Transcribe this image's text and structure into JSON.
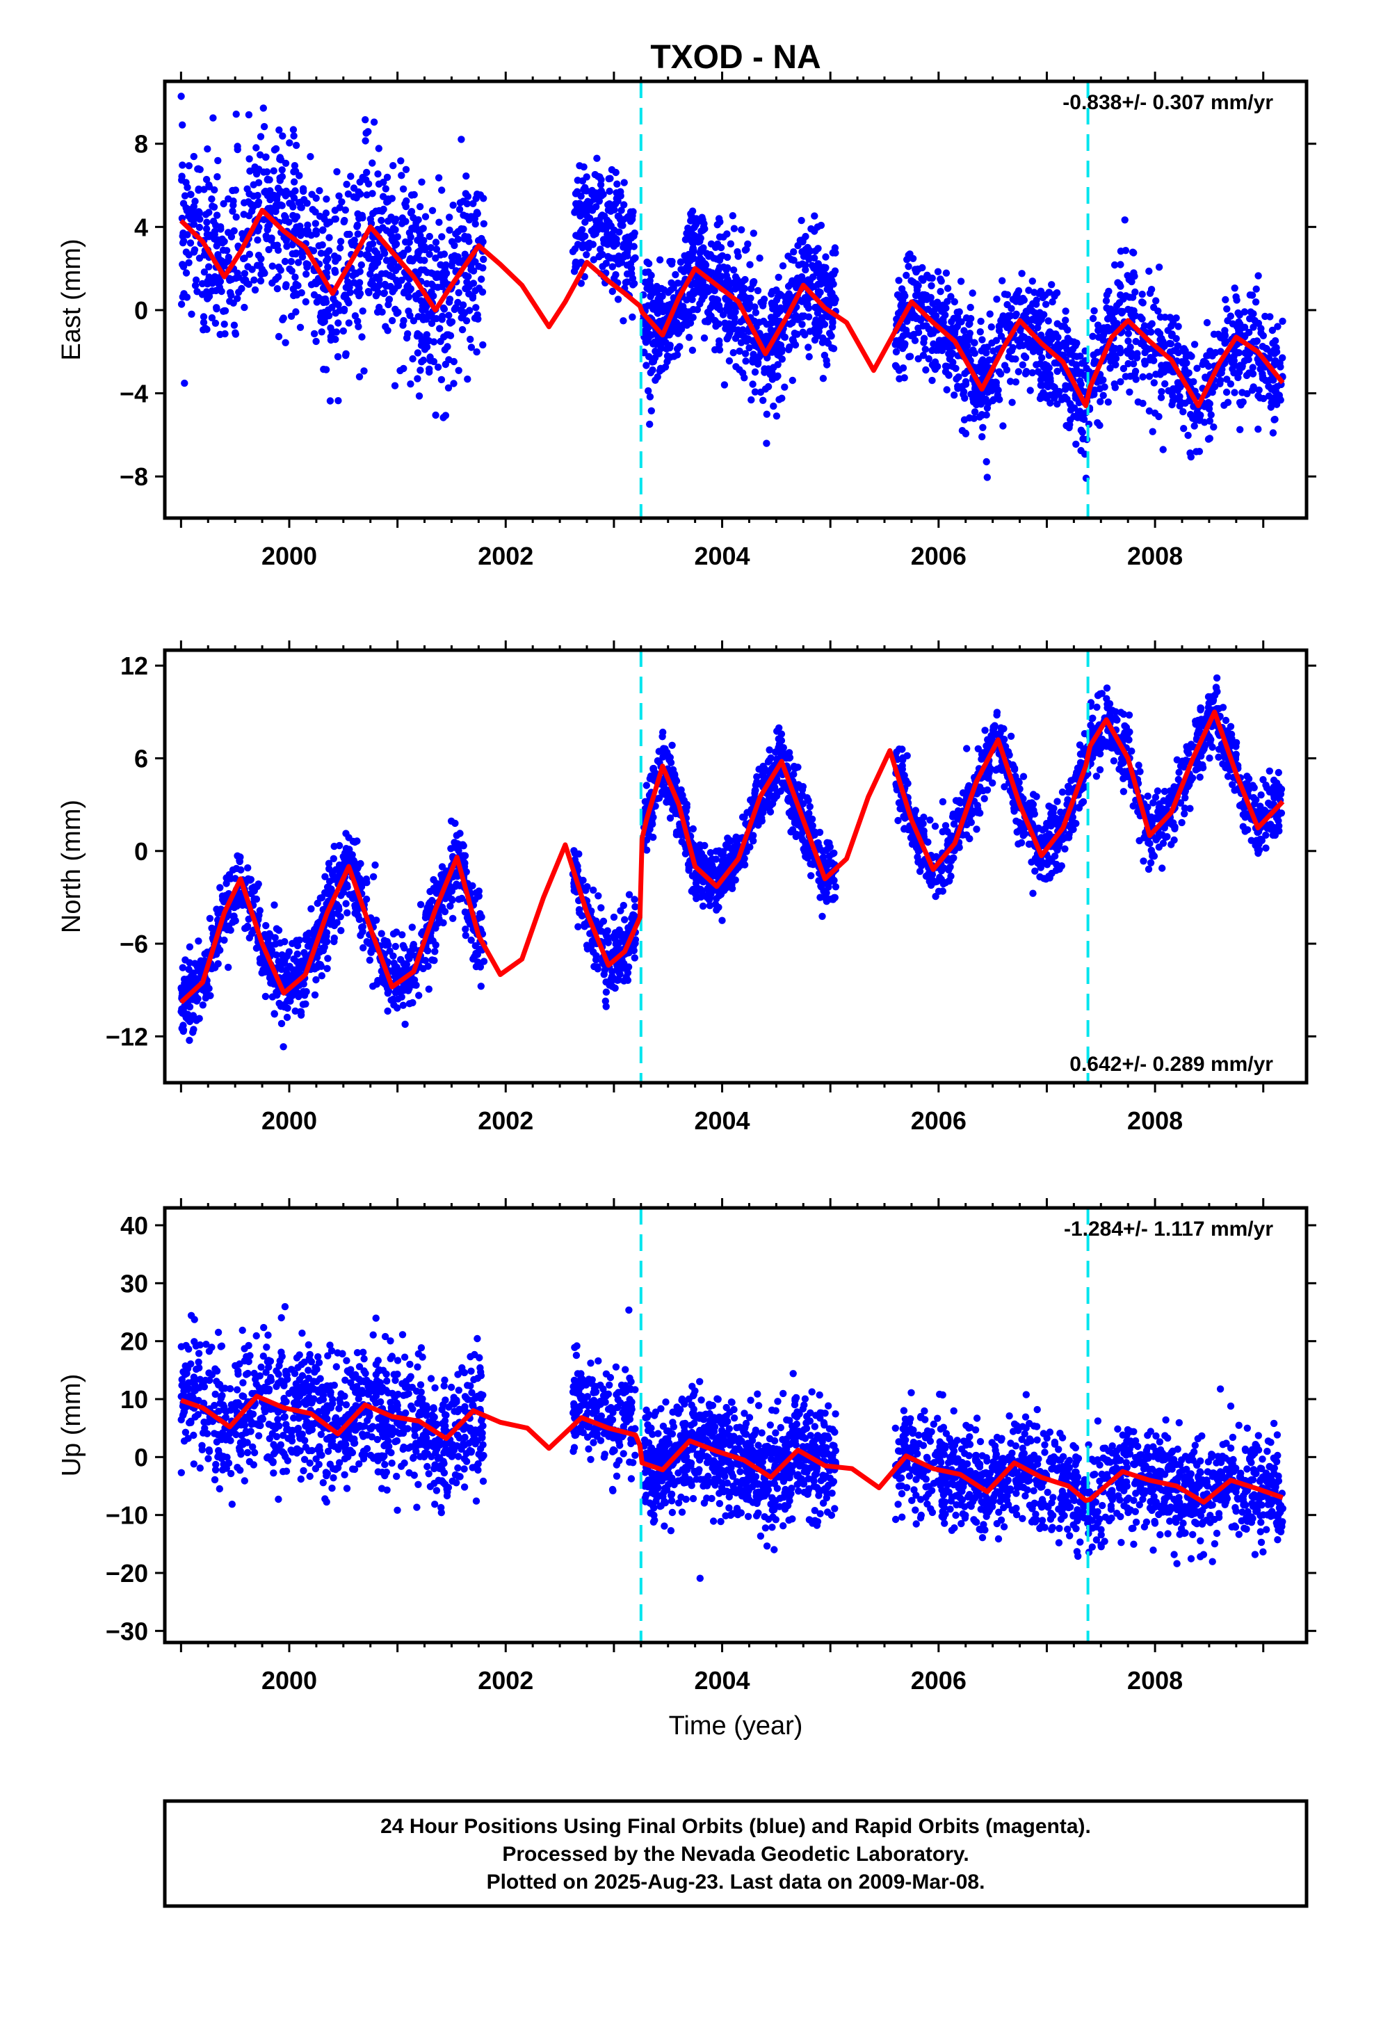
{
  "title": "TXOD - NA",
  "colors": {
    "points": "#0000ff",
    "fit": "#ff0000",
    "offset_lines": "#00e5ee",
    "frame": "#000000"
  },
  "xlabel": "Time (year)",
  "footer": {
    "line1": "24 Hour Positions Using Final Orbits (blue) and Rapid Orbits (magenta).",
    "line2": "Processed by the Nevada Geodetic Laboratory.",
    "line3": "Plotted on 2025-Aug-23. Last data on 2009-Mar-08."
  },
  "chart_data": [
    {
      "type": "scatter",
      "component": "east",
      "ylabel": "East (mm)",
      "rate": "-0.838+/- 0.307 mm/yr",
      "xlim": [
        1998.85,
        2009.4
      ],
      "ylim": [
        -10,
        11
      ],
      "xticks": [
        2000,
        2002,
        2004,
        2006,
        2008
      ],
      "yticks": [
        -8,
        -4,
        0,
        4,
        8
      ],
      "offset_epochs": [
        2003.25,
        2007.38
      ],
      "fit": {
        "name": "",
        "x": [
          1999.0,
          1999.2,
          1999.4,
          1999.55,
          1999.75,
          1999.95,
          2000.15,
          2000.4,
          2000.6,
          2000.75,
          2000.95,
          2001.15,
          2001.35,
          2001.5,
          2001.75,
          2001.95,
          2002.15,
          2002.4,
          2002.55,
          2002.75,
          2002.95,
          2003.1,
          2003.24,
          2003.26,
          2003.45,
          2003.6,
          2003.75,
          2003.95,
          2004.15,
          2004.4,
          2004.6,
          2004.75,
          2004.95,
          2005.15,
          2005.4,
          2005.6,
          2005.75,
          2005.95,
          2006.15,
          2006.4,
          2006.6,
          2006.75,
          2006.95,
          2007.15,
          2007.36,
          2007.4,
          2007.6,
          2007.75,
          2007.95,
          2008.15,
          2008.4,
          2008.6,
          2008.75,
          2008.95,
          2009.18
        ],
        "y": [
          4.3,
          3.3,
          1.6,
          2.8,
          4.8,
          3.8,
          3.0,
          0.8,
          2.6,
          4.0,
          2.8,
          1.6,
          0.0,
          1.2,
          3.1,
          2.2,
          1.2,
          -0.8,
          0.4,
          2.3,
          1.4,
          0.8,
          0.2,
          -0.1,
          -1.2,
          0.6,
          2.0,
          1.2,
          0.4,
          -2.1,
          -0.3,
          1.2,
          0.1,
          -0.6,
          -2.9,
          -1.0,
          0.4,
          -0.6,
          -1.5,
          -3.8,
          -1.8,
          -0.5,
          -1.6,
          -2.5,
          -4.6,
          -3.7,
          -1.3,
          -0.5,
          -1.5,
          -2.4,
          -4.6,
          -2.5,
          -1.3,
          -2.0,
          -3.5
        ]
      },
      "segments": [
        {
          "start": 1999.0,
          "end": 2001.8,
          "sigma": 2.2,
          "count": 1050
        },
        {
          "start": 2002.62,
          "end": 2003.2,
          "sigma": 1.4,
          "count": 220,
          "bias": 2.3
        },
        {
          "start": 2003.27,
          "end": 2005.05,
          "sigma": 1.5,
          "count": 850
        },
        {
          "start": 2005.6,
          "end": 2009.18,
          "sigma": 1.4,
          "count": 1250
        }
      ]
    },
    {
      "type": "scatter",
      "component": "north",
      "ylabel": "North (mm)",
      "rate": "0.642+/- 0.289 mm/yr",
      "xlim": [
        1998.85,
        2009.4
      ],
      "ylim": [
        -15,
        13
      ],
      "xticks": [
        2000,
        2002,
        2004,
        2006,
        2008
      ],
      "yticks": [
        -12,
        -6,
        0,
        6,
        12
      ],
      "offset_epochs": [
        2003.25,
        2007.38
      ],
      "fit": {
        "name": "",
        "x": [
          1999.0,
          1999.2,
          1999.4,
          1999.55,
          1999.75,
          1999.95,
          2000.15,
          2000.35,
          2000.55,
          2000.75,
          2000.95,
          2001.15,
          2001.35,
          2001.55,
          2001.75,
          2001.95,
          2002.15,
          2002.35,
          2002.55,
          2002.75,
          2002.95,
          2003.1,
          2003.24,
          2003.26,
          2003.3,
          2003.45,
          2003.6,
          2003.75,
          2003.95,
          2004.15,
          2004.35,
          2004.55,
          2004.75,
          2004.95,
          2005.15,
          2005.35,
          2005.55,
          2005.75,
          2005.95,
          2006.15,
          2006.35,
          2006.55,
          2006.75,
          2006.95,
          2007.15,
          2007.36,
          2007.4,
          2007.55,
          2007.75,
          2007.95,
          2008.15,
          2008.35,
          2008.55,
          2008.75,
          2008.95,
          2009.18
        ],
        "y": [
          -9.8,
          -8.5,
          -4.0,
          -1.8,
          -6.0,
          -9.2,
          -8.0,
          -4.0,
          -1.0,
          -5.0,
          -8.8,
          -7.8,
          -3.8,
          -0.4,
          -5.5,
          -8.0,
          -7.0,
          -3.0,
          0.4,
          -4.0,
          -7.4,
          -6.5,
          -4.3,
          0.8,
          2.0,
          5.5,
          3.0,
          -1.0,
          -2.3,
          -0.5,
          3.5,
          5.8,
          2.0,
          -1.8,
          -0.5,
          3.5,
          6.5,
          2.0,
          -1.2,
          0.5,
          4.5,
          7.2,
          3.0,
          -0.3,
          1.5,
          5.5,
          6.8,
          8.5,
          6.0,
          1.0,
          2.5,
          6.0,
          9.0,
          5.0,
          1.5,
          3.2
        ]
      },
      "segments": [
        {
          "start": 1999.0,
          "end": 2001.8,
          "sigma": 1.3,
          "count": 1050
        },
        {
          "start": 2002.62,
          "end": 2003.2,
          "sigma": 1.1,
          "count": 220
        },
        {
          "start": 2003.27,
          "end": 2005.05,
          "sigma": 1.0,
          "count": 850
        },
        {
          "start": 2005.6,
          "end": 2009.18,
          "sigma": 1.1,
          "count": 1250
        }
      ]
    },
    {
      "type": "scatter",
      "component": "up",
      "ylabel": "Up (mm)",
      "rate": "-1.284+/- 1.117 mm/yr",
      "xlim": [
        1998.85,
        2009.4
      ],
      "ylim": [
        -32,
        43
      ],
      "xticks": [
        2000,
        2002,
        2004,
        2006,
        2008
      ],
      "yticks": [
        -30,
        -20,
        -10,
        0,
        10,
        20,
        30,
        40
      ],
      "offset_epochs": [
        2003.25,
        2007.38
      ],
      "fit": {
        "name": "",
        "x": [
          1999.0,
          1999.2,
          1999.45,
          1999.7,
          1999.95,
          2000.2,
          2000.45,
          2000.7,
          2000.95,
          2001.2,
          2001.45,
          2001.7,
          2001.95,
          2002.2,
          2002.4,
          2002.7,
          2002.95,
          2003.2,
          2003.24,
          2003.26,
          2003.45,
          2003.7,
          2003.95,
          2004.2,
          2004.45,
          2004.7,
          2004.95,
          2005.2,
          2005.45,
          2005.7,
          2005.95,
          2006.2,
          2006.45,
          2006.7,
          2006.95,
          2007.2,
          2007.36,
          2007.4,
          2007.7,
          2007.95,
          2008.2,
          2008.45,
          2008.7,
          2008.95,
          2009.18
        ],
        "y": [
          9.8,
          8.5,
          5.2,
          10.5,
          8.5,
          7.5,
          4.0,
          9.0,
          7.0,
          6.2,
          3.2,
          8.0,
          6.0,
          5.0,
          1.5,
          6.8,
          5.0,
          3.8,
          2.0,
          -1.0,
          -2.2,
          2.8,
          1.0,
          -0.5,
          -3.5,
          1.2,
          -1.5,
          -2.0,
          -5.3,
          0.2,
          -2.0,
          -3.0,
          -6.0,
          -1.0,
          -3.5,
          -5.0,
          -7.5,
          -7.3,
          -2.5,
          -4.0,
          -5.0,
          -7.8,
          -4.0,
          -5.5,
          -7.0
        ]
      },
      "segments": [
        {
          "start": 1999.0,
          "end": 2001.8,
          "sigma": 5.5,
          "count": 1050
        },
        {
          "start": 2002.62,
          "end": 2003.2,
          "sigma": 4.5,
          "count": 220,
          "bias": 2.0
        },
        {
          "start": 2003.27,
          "end": 2005.05,
          "sigma": 4.8,
          "count": 850
        },
        {
          "start": 2005.6,
          "end": 2009.18,
          "sigma": 4.5,
          "count": 1250
        }
      ]
    }
  ]
}
